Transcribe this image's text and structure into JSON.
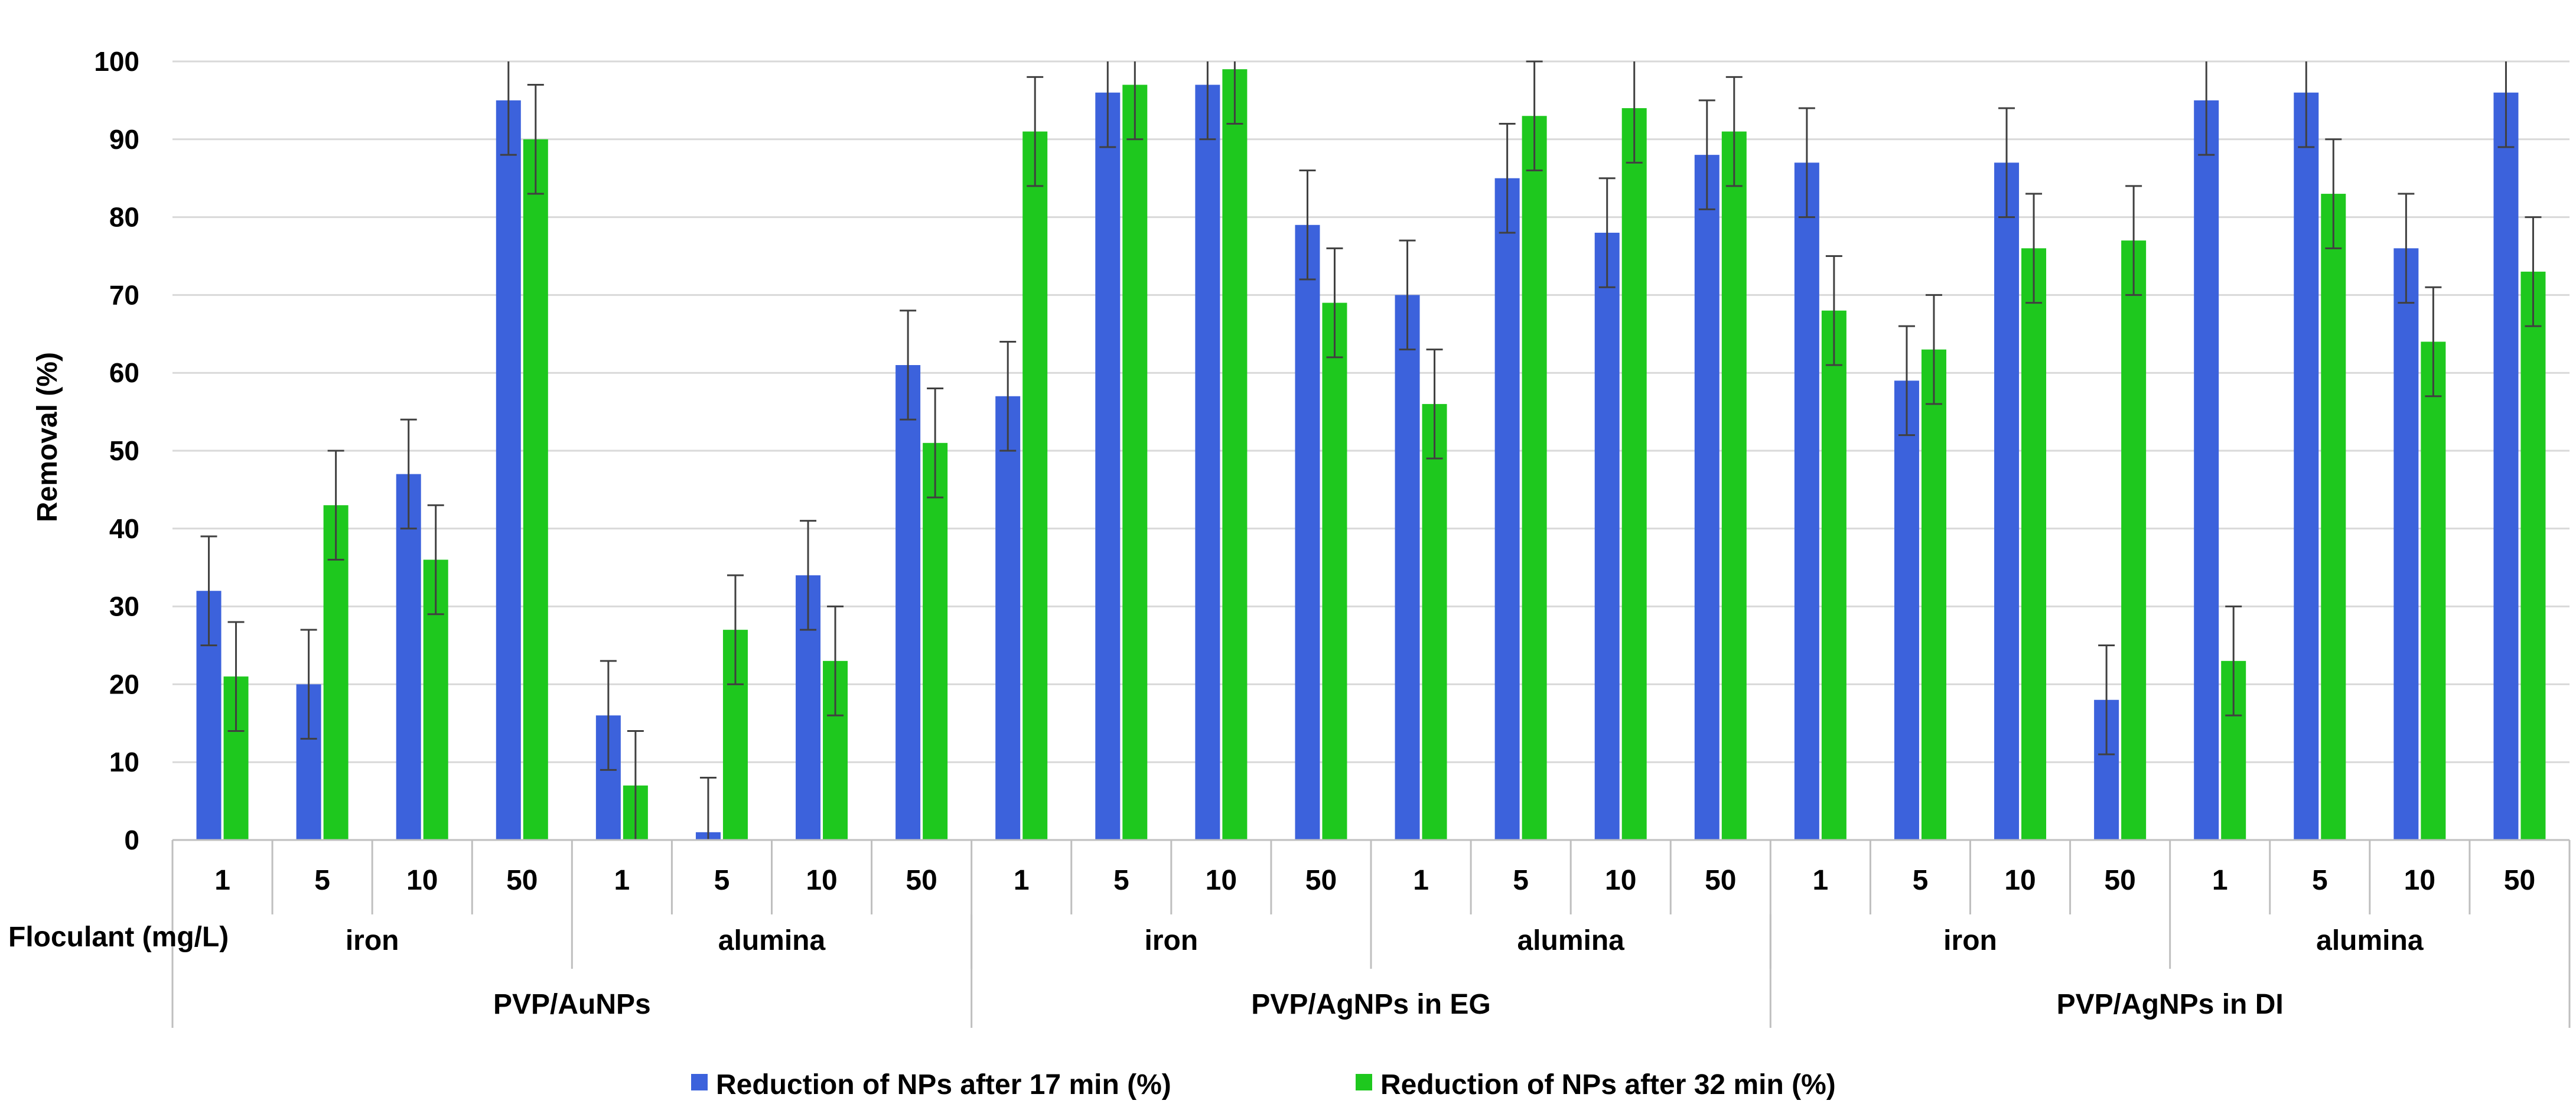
{
  "chart_data": {
    "type": "bar",
    "title": "",
    "ylabel": "Removal (%)",
    "xlabel": "Floculant (mg/L)",
    "ylim": [
      0,
      100
    ],
    "yticks": [
      0,
      10,
      20,
      30,
      40,
      50,
      60,
      70,
      80,
      90,
      100
    ],
    "grid": true,
    "legend_position": "bottom",
    "categories": [
      "1",
      "5",
      "10",
      "50",
      "1",
      "5",
      "10",
      "50",
      "1",
      "5",
      "10",
      "50",
      "1",
      "5",
      "10",
      "50",
      "1",
      "5",
      "10",
      "50",
      "1",
      "5",
      "10",
      "50"
    ],
    "floculant_groups": [
      {
        "label": "iron",
        "start": 0,
        "count": 4
      },
      {
        "label": "alumina",
        "start": 4,
        "count": 4
      },
      {
        "label": "iron",
        "start": 8,
        "count": 4
      },
      {
        "label": "alumina",
        "start": 12,
        "count": 4
      },
      {
        "label": "iron",
        "start": 16,
        "count": 4
      },
      {
        "label": "alumina",
        "start": 20,
        "count": 4
      }
    ],
    "np_groups": [
      {
        "label": "PVP/AuNPs",
        "start": 0,
        "count": 8
      },
      {
        "label": "PVP/AgNPs in EG",
        "start": 8,
        "count": 8
      },
      {
        "label": "PVP/AgNPs in DI",
        "start": 16,
        "count": 8
      }
    ],
    "series": [
      {
        "name": "Reduction of NPs after 17 min (%)",
        "color": "#3c62dc",
        "values": [
          32,
          20,
          47,
          95,
          16,
          1,
          34,
          61,
          57,
          96,
          97,
          79,
          70,
          85,
          78,
          88,
          87,
          59,
          87,
          18,
          95,
          96,
          76,
          96
        ],
        "errors": [
          7,
          7,
          7,
          7,
          7,
          7,
          7,
          7,
          7,
          7,
          7,
          7,
          7,
          7,
          7,
          7,
          7,
          7,
          7,
          7,
          7,
          7,
          7,
          7
        ]
      },
      {
        "name": "Reduction of NPs after 32 min (%)",
        "color": "#1ec81e",
        "values": [
          21,
          43,
          36,
          90,
          7,
          27,
          23,
          51,
          91,
          97,
          99,
          69,
          56,
          93,
          94,
          91,
          68,
          63,
          76,
          77,
          23,
          83,
          64,
          73
        ],
        "errors": [
          7,
          7,
          7,
          7,
          7,
          7,
          7,
          7,
          7,
          7,
          7,
          7,
          7,
          7,
          7,
          7,
          7,
          7,
          7,
          7,
          7,
          7,
          7,
          7
        ]
      }
    ]
  }
}
